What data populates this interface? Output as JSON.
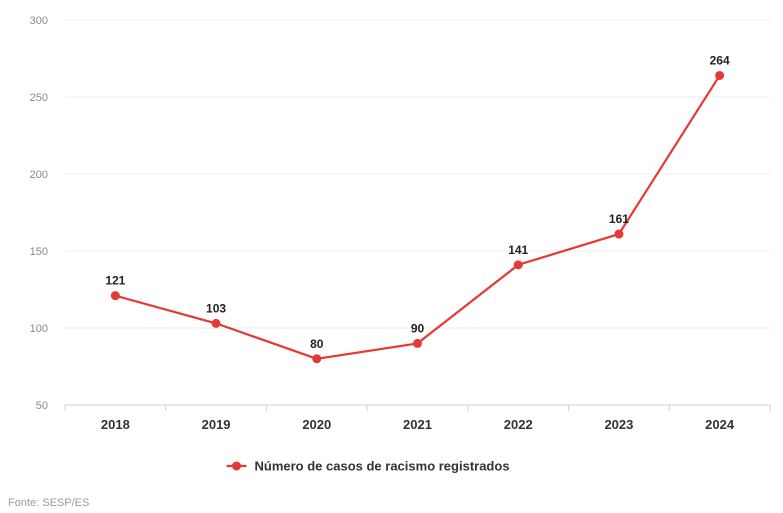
{
  "chart_data": {
    "type": "line",
    "categories": [
      "2018",
      "2019",
      "2020",
      "2021",
      "2022",
      "2023",
      "2024"
    ],
    "series": [
      {
        "name": "Número de casos de racismo registrados",
        "values": [
          121,
          103,
          80,
          90,
          141,
          161,
          264
        ],
        "color": "#e53935"
      }
    ],
    "ylim": [
      50,
      300
    ],
    "yticks": [
      50,
      100,
      150,
      200,
      250,
      300
    ],
    "grid": true,
    "legend": "bottom-center",
    "data_labels": true
  },
  "source": "Fonte: SESP/ES"
}
